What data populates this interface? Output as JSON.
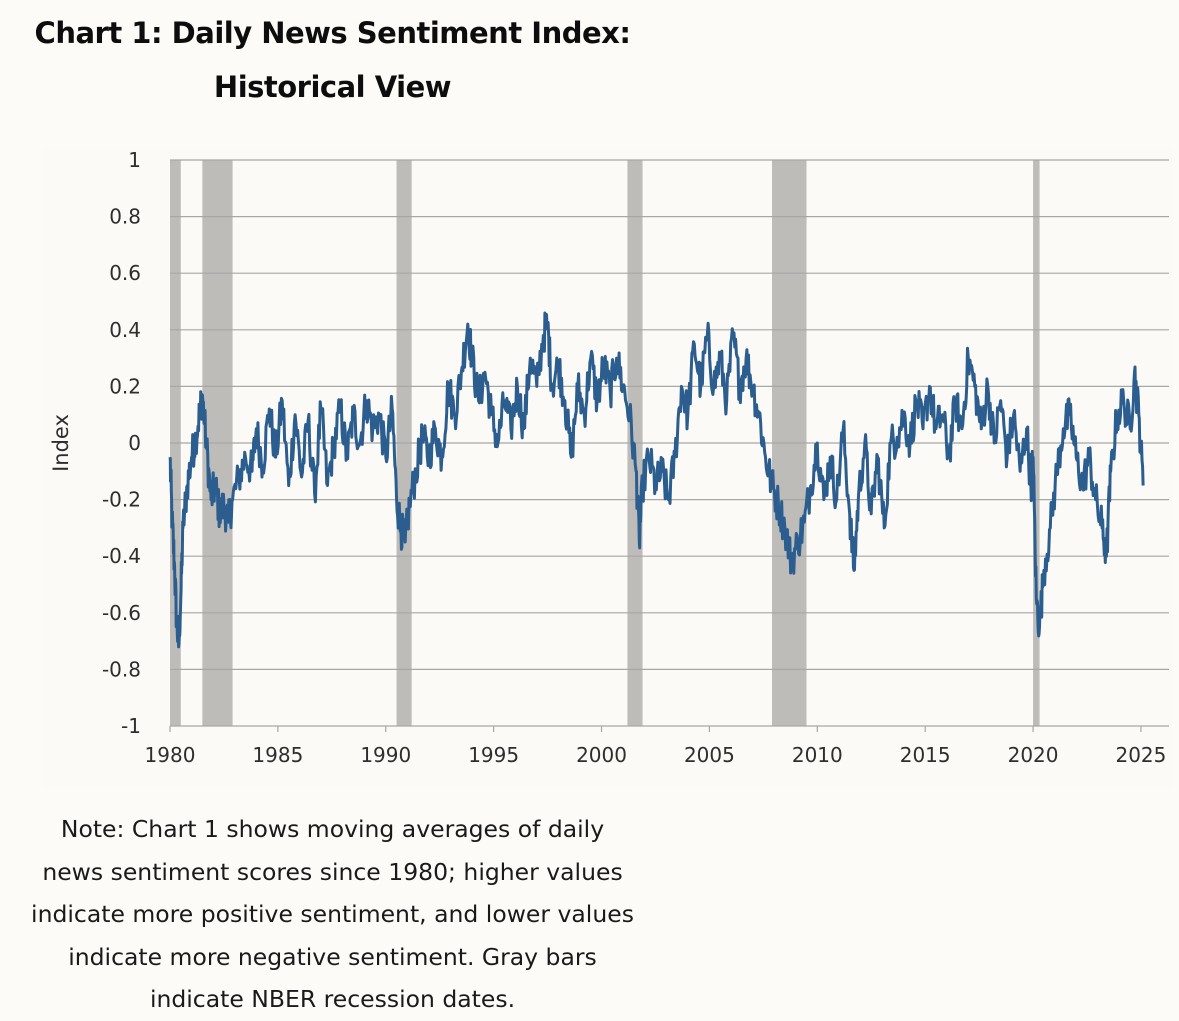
{
  "title_line1": "Chart 1: Daily News Sentiment Index:",
  "title_line2": "Historical View",
  "note": "Note: Chart 1 shows moving averages of daily news sentiment scores since 1980; higher values indicate more positive sentiment, and lower values indicate more negative sentiment. Gray bars indicate NBER recession dates.",
  "colors": {
    "line": "#2c5d8f",
    "recession": "#bdbcb9",
    "grid": "#a7a7a7",
    "plot_bg": "#fbfaf6"
  },
  "chart_data": {
    "type": "line",
    "ylabel": "Index",
    "xlabel": "",
    "ylim": [
      -1,
      1
    ],
    "xlim": [
      1980,
      2026.3
    ],
    "yticks": [
      "1",
      "0.8",
      "0.6",
      "0.4",
      "0.2",
      "0",
      "-0.2",
      "-0.4",
      "-0.6",
      "-0.8",
      "-1"
    ],
    "xticks": [
      "1980",
      "1985",
      "1990",
      "1995",
      "2000",
      "2005",
      "2010",
      "2015",
      "2020",
      "2025"
    ],
    "grid": "horizontal",
    "recessions": [
      [
        1980.0,
        1980.5
      ],
      [
        1981.5,
        1982.9
      ],
      [
        1990.5,
        1991.2
      ],
      [
        2001.2,
        2001.9
      ],
      [
        2007.9,
        2009.5
      ],
      [
        2020.0,
        2020.3
      ]
    ],
    "series": [
      {
        "points": [
          [
            1980.0,
            -0.05
          ],
          [
            1980.1,
            -0.28
          ],
          [
            1980.2,
            -0.42
          ],
          [
            1980.3,
            -0.62
          ],
          [
            1980.4,
            -0.72
          ],
          [
            1980.5,
            -0.55
          ],
          [
            1980.6,
            -0.3
          ],
          [
            1980.8,
            -0.15
          ],
          [
            1981.0,
            -0.05
          ],
          [
            1981.2,
            0.02
          ],
          [
            1981.4,
            0.12
          ],
          [
            1981.5,
            0.17
          ],
          [
            1981.7,
            -0.02
          ],
          [
            1981.9,
            -0.2
          ],
          [
            1982.1,
            -0.15
          ],
          [
            1982.3,
            -0.25
          ],
          [
            1982.5,
            -0.22
          ],
          [
            1982.7,
            -0.28
          ],
          [
            1982.9,
            -0.2
          ],
          [
            1983.2,
            -0.12
          ],
          [
            1983.5,
            -0.05
          ],
          [
            1983.8,
            -0.1
          ],
          [
            1984.0,
            0.05
          ],
          [
            1984.3,
            -0.08
          ],
          [
            1984.6,
            0.12
          ],
          [
            1984.9,
            -0.05
          ],
          [
            1985.2,
            0.15
          ],
          [
            1985.5,
            -0.15
          ],
          [
            1985.8,
            0.1
          ],
          [
            1986.1,
            -0.12
          ],
          [
            1986.4,
            0.08
          ],
          [
            1986.7,
            -0.18
          ],
          [
            1987.0,
            0.12
          ],
          [
            1987.3,
            -0.15
          ],
          [
            1987.6,
            0.0
          ],
          [
            1987.9,
            0.12
          ],
          [
            1988.2,
            -0.05
          ],
          [
            1988.5,
            0.1
          ],
          [
            1988.8,
            0.0
          ],
          [
            1989.1,
            0.15
          ],
          [
            1989.4,
            0.05
          ],
          [
            1989.7,
            0.1
          ],
          [
            1990.0,
            -0.05
          ],
          [
            1990.3,
            0.12
          ],
          [
            1990.5,
            -0.2
          ],
          [
            1990.7,
            -0.3
          ],
          [
            1990.9,
            -0.35
          ],
          [
            1991.1,
            -0.22
          ],
          [
            1991.4,
            -0.1
          ],
          [
            1991.7,
            0.02
          ],
          [
            1992.0,
            -0.05
          ],
          [
            1992.3,
            0.05
          ],
          [
            1992.6,
            -0.05
          ],
          [
            1992.9,
            0.2
          ],
          [
            1993.2,
            0.1
          ],
          [
            1993.5,
            0.25
          ],
          [
            1993.8,
            0.42
          ],
          [
            1994.0,
            0.3
          ],
          [
            1994.3,
            0.15
          ],
          [
            1994.6,
            0.25
          ],
          [
            1994.9,
            0.1
          ],
          [
            1995.2,
            0.0
          ],
          [
            1995.5,
            0.15
          ],
          [
            1995.8,
            0.05
          ],
          [
            1996.1,
            0.2
          ],
          [
            1996.4,
            0.05
          ],
          [
            1996.7,
            0.3
          ],
          [
            1997.0,
            0.2
          ],
          [
            1997.3,
            0.38
          ],
          [
            1997.5,
            0.42
          ],
          [
            1997.7,
            0.2
          ],
          [
            1998.0,
            0.28
          ],
          [
            1998.3,
            0.15
          ],
          [
            1998.6,
            -0.05
          ],
          [
            1998.9,
            0.2
          ],
          [
            1999.2,
            0.1
          ],
          [
            1999.5,
            0.3
          ],
          [
            1999.8,
            0.15
          ],
          [
            2000.1,
            0.28
          ],
          [
            2000.4,
            0.18
          ],
          [
            2000.7,
            0.3
          ],
          [
            2001.0,
            0.2
          ],
          [
            2001.3,
            0.1
          ],
          [
            2001.6,
            -0.1
          ],
          [
            2001.75,
            -0.35
          ],
          [
            2001.9,
            -0.15
          ],
          [
            2002.2,
            -0.05
          ],
          [
            2002.5,
            -0.15
          ],
          [
            2002.8,
            -0.1
          ],
          [
            2003.1,
            -0.2
          ],
          [
            2003.4,
            -0.05
          ],
          [
            2003.7,
            0.2
          ],
          [
            2004.0,
            0.1
          ],
          [
            2004.3,
            0.35
          ],
          [
            2004.6,
            0.2
          ],
          [
            2004.9,
            0.38
          ],
          [
            2005.2,
            0.2
          ],
          [
            2005.5,
            0.3
          ],
          [
            2005.8,
            0.15
          ],
          [
            2006.1,
            0.38
          ],
          [
            2006.4,
            0.2
          ],
          [
            2006.7,
            0.3
          ],
          [
            2007.0,
            0.2
          ],
          [
            2007.3,
            0.1
          ],
          [
            2007.6,
            -0.05
          ],
          [
            2007.9,
            -0.15
          ],
          [
            2008.2,
            -0.22
          ],
          [
            2008.5,
            -0.3
          ],
          [
            2008.8,
            -0.42
          ],
          [
            2009.1,
            -0.35
          ],
          [
            2009.4,
            -0.28
          ],
          [
            2009.7,
            -0.15
          ],
          [
            2010.0,
            0.0
          ],
          [
            2010.3,
            -0.2
          ],
          [
            2010.6,
            -0.05
          ],
          [
            2010.9,
            -0.2
          ],
          [
            2011.2,
            0.05
          ],
          [
            2011.5,
            -0.25
          ],
          [
            2011.7,
            -0.45
          ],
          [
            2011.9,
            -0.2
          ],
          [
            2012.2,
            0.0
          ],
          [
            2012.5,
            -0.25
          ],
          [
            2012.8,
            -0.05
          ],
          [
            2013.1,
            -0.3
          ],
          [
            2013.4,
            0.0
          ],
          [
            2013.7,
            0.02
          ],
          [
            2014.0,
            0.1
          ],
          [
            2014.3,
            0.0
          ],
          [
            2014.6,
            0.15
          ],
          [
            2014.9,
            0.05
          ],
          [
            2015.2,
            0.2
          ],
          [
            2015.5,
            0.05
          ],
          [
            2015.8,
            0.1
          ],
          [
            2016.1,
            -0.05
          ],
          [
            2016.4,
            0.15
          ],
          [
            2016.7,
            0.05
          ],
          [
            2017.0,
            0.3
          ],
          [
            2017.3,
            0.2
          ],
          [
            2017.6,
            0.05
          ],
          [
            2017.9,
            0.2
          ],
          [
            2018.2,
            0.0
          ],
          [
            2018.5,
            0.15
          ],
          [
            2018.8,
            -0.05
          ],
          [
            2019.1,
            0.1
          ],
          [
            2019.4,
            -0.1
          ],
          [
            2019.7,
            0.05
          ],
          [
            2019.9,
            -0.15
          ],
          [
            2020.0,
            -0.05
          ],
          [
            2020.15,
            -0.55
          ],
          [
            2020.3,
            -0.65
          ],
          [
            2020.5,
            -0.45
          ],
          [
            2020.8,
            -0.3
          ],
          [
            2021.1,
            -0.1
          ],
          [
            2021.4,
            0.05
          ],
          [
            2021.7,
            0.1
          ],
          [
            2022.0,
            -0.05
          ],
          [
            2022.3,
            -0.15
          ],
          [
            2022.6,
            -0.05
          ],
          [
            2022.9,
            -0.2
          ],
          [
            2023.2,
            -0.3
          ],
          [
            2023.4,
            -0.4
          ],
          [
            2023.6,
            -0.1
          ],
          [
            2023.9,
            0.1
          ],
          [
            2024.2,
            0.15
          ],
          [
            2024.5,
            0.05
          ],
          [
            2024.7,
            0.25
          ],
          [
            2024.9,
            0.1
          ],
          [
            2025.1,
            -0.15
          ]
        ]
      }
    ]
  }
}
